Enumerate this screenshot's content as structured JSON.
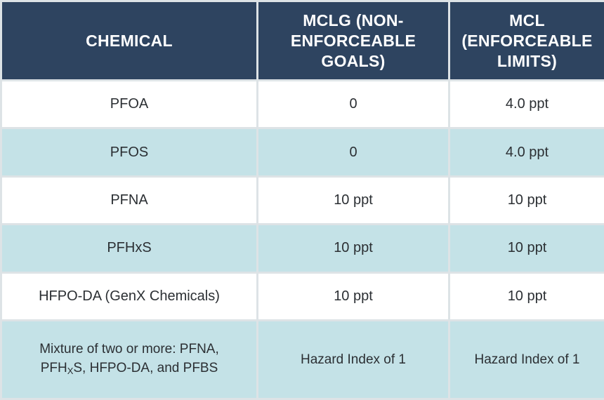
{
  "table": {
    "headers": [
      "CHEMICAL",
      "MCLG (NON-ENFORCEABLE GOALS)",
      "MCL (ENFORCEABLE LIMITS)"
    ],
    "rows": [
      [
        "PFOA",
        "0",
        "4.0 ppt"
      ],
      [
        "PFOS",
        "0",
        "4.0 ppt"
      ],
      [
        "PFNA",
        "10 ppt",
        "10 ppt"
      ],
      [
        "PFHxS",
        "10 ppt",
        "10 ppt"
      ],
      [
        "HFPO-DA (GenX Chemicals)",
        "10 ppt",
        "10 ppt"
      ]
    ],
    "mixture_row": {
      "chemical_line1": "Mixture of two or more: PFNA,",
      "chemical_line2_prefix": "PFH",
      "chemical_line2_sub": "X",
      "chemical_line2_suffix": "S, HFPO-DA, and PFBS",
      "mclg": "Hazard Index of 1",
      "mcl": "Hazard Index of 1"
    }
  },
  "colors": {
    "header_bg": "#2e4460",
    "row_alt_bg": "#c4e2e7",
    "row_bg": "#ffffff",
    "border": "#dde3e6"
  }
}
